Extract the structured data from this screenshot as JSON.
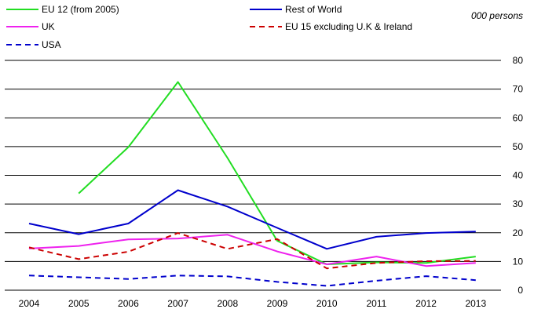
{
  "chart_data": {
    "type": "line",
    "unit_label": "000 persons",
    "categories": [
      "2004",
      "2005",
      "2006",
      "2007",
      "2008",
      "2009",
      "2010",
      "2011",
      "2012",
      "2013"
    ],
    "ylim": [
      0,
      80
    ],
    "yticks": [
      0,
      10,
      20,
      30,
      40,
      50,
      60,
      70,
      80
    ],
    "y_axis_side": "right",
    "grid": "horizontal",
    "legend_placement": "top-left, two columns",
    "series": [
      {
        "name": "EU 12 (from  2005)",
        "color": "#22dd22",
        "dash": "solid",
        "values": [
          null,
          33.7,
          49.8,
          72.5,
          46.0,
          17.2,
          9.0,
          9.7,
          9.5,
          11.7
        ]
      },
      {
        "name": "Rest of World",
        "color": "#0000cc",
        "dash": "solid",
        "values": [
          23.2,
          19.5,
          23.2,
          34.8,
          29.1,
          21.7,
          14.4,
          18.6,
          19.9,
          20.4
        ]
      },
      {
        "name": "UK",
        "color": "#ee22ee",
        "dash": "solid",
        "values": [
          14.5,
          15.4,
          17.7,
          18.0,
          19.3,
          13.5,
          9.0,
          11.7,
          8.4,
          9.5
        ]
      },
      {
        "name": "EU 15 excluding U.K & Ireland",
        "color": "#cc0000",
        "dash": "dashed",
        "values": [
          14.9,
          10.8,
          13.4,
          19.9,
          14.4,
          17.8,
          7.6,
          9.5,
          10.1,
          10.2
        ]
      },
      {
        "name": "USA",
        "color": "#0000cc",
        "dash": "dashed",
        "values": [
          5.1,
          4.5,
          3.9,
          5.1,
          4.8,
          2.9,
          1.5,
          3.3,
          4.9,
          3.5
        ]
      }
    ]
  }
}
